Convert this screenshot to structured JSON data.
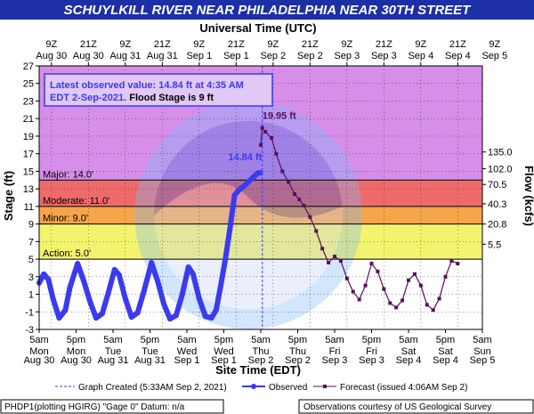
{
  "title": "SCHUYLKILL RIVER NEAR PHILADELPHIA NEAR 30TH STREET",
  "top_axis_title": "Universal Time (UTC)",
  "bottom_axis_title": "Site Time (EDT)",
  "colors": {
    "banner": "#1c2fa6",
    "major": "#d68ee8",
    "moderate": "#ef6b6b",
    "flood": "#f6a54a",
    "action": "#f3f36e",
    "below": "#ffffff",
    "observed": "#3a3af0",
    "forecast": "#5a0f5a",
    "box_bg": "#e1c8f5",
    "box_border": "#3a3af0"
  },
  "annotation": {
    "line1": "Latest observed value: 14.84 ft at 4:35 AM",
    "line2a": "EDT 2-Sep-2021.",
    "line2b": " Flood Stage is 9 ft",
    "observed_label": "14.84 ft",
    "forecast_label": "19.95 ft"
  },
  "legend": {
    "created": "Graph Created (5:33AM Sep 2, 2021)",
    "observed": "Observed",
    "forecast": "Forecast (issued 4:06AM Sep 2)"
  },
  "footer": {
    "left": "PHDP1(plotting HGIRG) \"Gage 0\" Datum: n/a",
    "right": "Observations courtesy of US Geological Survey"
  },
  "chart_data": {
    "type": "line",
    "ylabel_left": "Stage (ft)",
    "ylabel_right": "Flow (kcfs)",
    "ylim": [
      -3,
      27
    ],
    "y_ticks": [
      -3,
      -1,
      1,
      3,
      5,
      7,
      9,
      11,
      13,
      15,
      17,
      19,
      21,
      23,
      25,
      27
    ],
    "flow_ticks": [
      {
        "stage": 6.7,
        "label": "5.5"
      },
      {
        "stage": 9.0,
        "label": "20.8"
      },
      {
        "stage": 11.3,
        "label": "40.3"
      },
      {
        "stage": 13.5,
        "label": "70.5"
      },
      {
        "stage": 15.3,
        "label": "102.0"
      },
      {
        "stage": 17.2,
        "label": "135.0"
      }
    ],
    "x_range_hours": [
      0,
      144
    ],
    "utc_ticks": [
      {
        "t": 4,
        "l1": "9Z",
        "l2": "Aug 30"
      },
      {
        "t": 16,
        "l1": "21Z",
        "l2": "Aug 30"
      },
      {
        "t": 28,
        "l1": "9Z",
        "l2": "Aug 31"
      },
      {
        "t": 40,
        "l1": "21Z",
        "l2": "Aug 31"
      },
      {
        "t": 52,
        "l1": "9Z",
        "l2": "Sep 1"
      },
      {
        "t": 64,
        "l1": "21Z",
        "l2": "Sep 1"
      },
      {
        "t": 76,
        "l1": "9Z",
        "l2": "Sep 2"
      },
      {
        "t": 88,
        "l1": "21Z",
        "l2": "Sep 2"
      },
      {
        "t": 100,
        "l1": "9Z",
        "l2": "Sep 3"
      },
      {
        "t": 112,
        "l1": "21Z",
        "l2": "Sep 3"
      },
      {
        "t": 124,
        "l1": "9Z",
        "l2": "Sep 4"
      },
      {
        "t": 136,
        "l1": "21Z",
        "l2": "Sep 4"
      },
      {
        "t": 148,
        "l1": "9Z",
        "l2": "Sep 5"
      }
    ],
    "local_ticks": [
      {
        "t": 0,
        "l1": "5am",
        "l2": "Mon",
        "l3": "Aug 30"
      },
      {
        "t": 12,
        "l1": "5pm",
        "l2": "Mon",
        "l3": "Aug 30"
      },
      {
        "t": 24,
        "l1": "5am",
        "l2": "Tue",
        "l3": "Aug 31"
      },
      {
        "t": 36,
        "l1": "5pm",
        "l2": "Tue",
        "l3": "Aug 31"
      },
      {
        "t": 48,
        "l1": "5am",
        "l2": "Wed",
        "l3": "Sep 1"
      },
      {
        "t": 60,
        "l1": "5pm",
        "l2": "Wed",
        "l3": "Sep 1"
      },
      {
        "t": 72,
        "l1": "5am",
        "l2": "Thu",
        "l3": "Sep 2"
      },
      {
        "t": 84,
        "l1": "5pm",
        "l2": "Thu",
        "l3": "Sep 2"
      },
      {
        "t": 96,
        "l1": "5am",
        "l2": "Fri",
        "l3": "Sep 3"
      },
      {
        "t": 108,
        "l1": "5pm",
        "l2": "Fri",
        "l3": "Sep 3"
      },
      {
        "t": 120,
        "l1": "5am",
        "l2": "Sat",
        "l3": "Sep 4"
      },
      {
        "t": 132,
        "l1": "5pm",
        "l2": "Sat",
        "l3": "Sep 4"
      },
      {
        "t": 144,
        "l1": "5am",
        "l2": "Sun",
        "l3": "Sep 5"
      }
    ],
    "categories": [
      {
        "name": "Major",
        "label": "Major: 14.0'",
        "from": 14,
        "to": 27
      },
      {
        "name": "Moderate",
        "label": "Moderate: 11.0'",
        "from": 11,
        "to": 14
      },
      {
        "name": "Minor",
        "label": "Minor: 9.0'",
        "from": 9,
        "to": 11
      },
      {
        "name": "Action",
        "label": "Action: 5.0'",
        "from": 5,
        "to": 9
      }
    ],
    "graph_created_hour": 72.5,
    "observed": [
      [
        0,
        2.3
      ],
      [
        1.5,
        3.3
      ],
      [
        3,
        2.7
      ],
      [
        4.5,
        0.5
      ],
      [
        6.5,
        -1.7
      ],
      [
        8.5,
        -0.8
      ],
      [
        10,
        1.8
      ],
      [
        12.5,
        4.5
      ],
      [
        14.5,
        2.5
      ],
      [
        16.5,
        0.2
      ],
      [
        18.5,
        -1.7
      ],
      [
        20.5,
        -1.2
      ],
      [
        22.5,
        1.2
      ],
      [
        24.5,
        3.8
      ],
      [
        26,
        3.2
      ],
      [
        28,
        0.5
      ],
      [
        30,
        -1.6
      ],
      [
        32,
        -1.1
      ],
      [
        34,
        1.3
      ],
      [
        36.5,
        4.6
      ],
      [
        38.5,
        2.5
      ],
      [
        40.5,
        -0.1
      ],
      [
        42.5,
        -1.8
      ],
      [
        44.5,
        -1.4
      ],
      [
        46.5,
        1.0
      ],
      [
        48.5,
        4.1
      ],
      [
        50,
        3.3
      ],
      [
        52,
        0.5
      ],
      [
        54,
        -1.5
      ],
      [
        56,
        -1.7
      ],
      [
        57.5,
        -0.8
      ],
      [
        59,
        2.0
      ],
      [
        60.5,
        5.0
      ],
      [
        62,
        8.5
      ],
      [
        63.5,
        12.3
      ],
      [
        65,
        12.9
      ],
      [
        66.5,
        13.3
      ],
      [
        68,
        13.8
      ],
      [
        69.5,
        14.3
      ],
      [
        71,
        14.8
      ],
      [
        71.8,
        14.84
      ]
    ],
    "forecast": [
      [
        72,
        18.0
      ],
      [
        72.5,
        19.95
      ],
      [
        73.5,
        19.5
      ],
      [
        75.5,
        18.8
      ],
      [
        77,
        17.0
      ],
      [
        79,
        15.0
      ],
      [
        81,
        13.8
      ],
      [
        83,
        12.4
      ],
      [
        84.5,
        11.8
      ],
      [
        86,
        11.1
      ],
      [
        88,
        9.8
      ],
      [
        90,
        8.2
      ],
      [
        92,
        6.2
      ],
      [
        94,
        4.6
      ],
      [
        96,
        5.3
      ],
      [
        98,
        4.8
      ],
      [
        100,
        2.8
      ],
      [
        102,
        1.3
      ],
      [
        104,
        0.4
      ],
      [
        106,
        2.0
      ],
      [
        108,
        4.5
      ],
      [
        110,
        3.6
      ],
      [
        112,
        1.6
      ],
      [
        114,
        0.0
      ],
      [
        116,
        -0.5
      ],
      [
        118,
        0.3
      ],
      [
        120,
        2.6
      ],
      [
        122,
        3.3
      ],
      [
        124,
        2.0
      ],
      [
        126,
        -0.2
      ],
      [
        128,
        -0.8
      ],
      [
        130,
        0.5
      ],
      [
        132,
        3.0
      ],
      [
        134,
        4.8
      ],
      [
        136,
        4.5
      ]
    ]
  }
}
